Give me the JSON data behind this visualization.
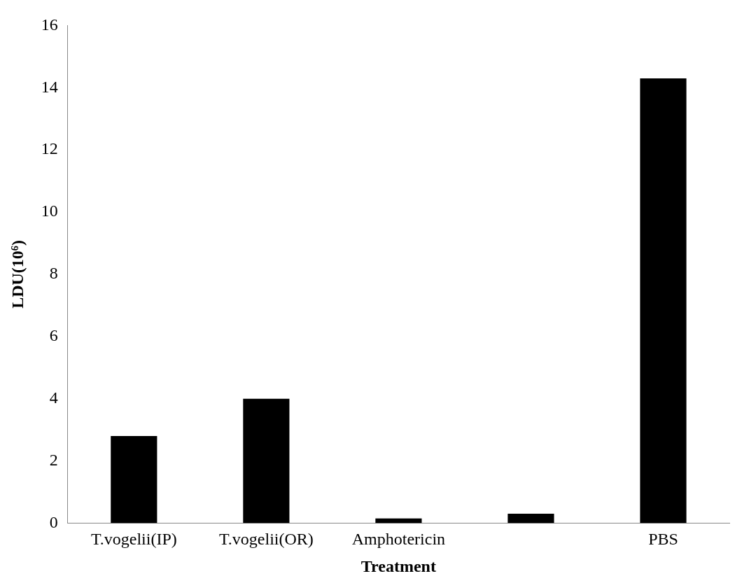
{
  "chart_data": {
    "type": "bar",
    "xlabel": "Treatment",
    "ylabel": "LDU(10⁶)",
    "categories": [
      "T.vogelii(IP)",
      "T.vogelii(OR)",
      "Amphotericin",
      null,
      "PBS"
    ],
    "values": [
      2.8,
      4.0,
      0.15,
      0.3,
      14.3
    ],
    "color": "#000000",
    "ylim": [
      0,
      16
    ],
    "yticks": [
      0,
      2,
      4,
      6,
      8,
      10,
      12,
      14,
      16
    ],
    "grid": false,
    "legend": false
  }
}
